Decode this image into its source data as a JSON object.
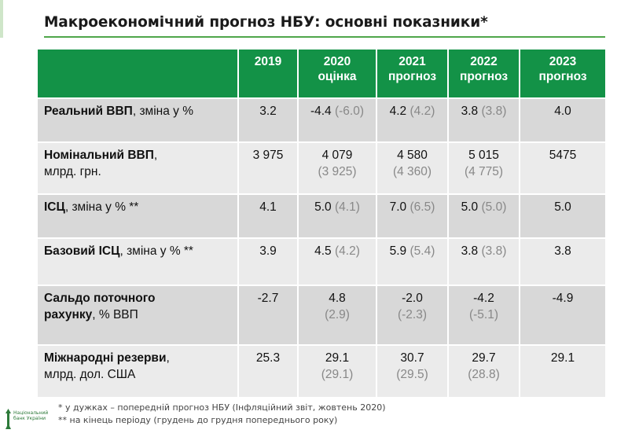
{
  "title": "Макроекономічний прогноз НБУ: основні показники*",
  "table": {
    "headers": [
      {
        "line1": "",
        "line2": ""
      },
      {
        "line1": "2019",
        "line2": ""
      },
      {
        "line1": "2020",
        "line2": "оцінка"
      },
      {
        "line1": "2021",
        "line2": "прогноз"
      },
      {
        "line1": "2022",
        "line2": "прогноз"
      },
      {
        "line1": "2023",
        "line2": "прогноз"
      }
    ],
    "rows": [
      {
        "label_bold": "Реальний ВВП",
        "label_rest": ", зміна у %",
        "label_line2": "",
        "cells": [
          {
            "value": "3.2",
            "prev": ""
          },
          {
            "value": "-4.4",
            "prev": "(-6.0)"
          },
          {
            "value": "4.2",
            "prev": "(4.2)"
          },
          {
            "value": "3.8",
            "prev": "(3.8)"
          },
          {
            "value": "4.0",
            "prev": ""
          }
        ]
      },
      {
        "label_bold": "Номінальний ВВП",
        "label_rest": ",",
        "label_line2": "млрд. грн.",
        "cells": [
          {
            "value": "3 975",
            "prev": ""
          },
          {
            "value": "4 079",
            "prev": "(3 925)"
          },
          {
            "value": "4 580",
            "prev": "(4 360)"
          },
          {
            "value": "5 015",
            "prev": "(4 775)"
          },
          {
            "value": "5475",
            "prev": ""
          }
        ]
      },
      {
        "label_bold": "ІСЦ",
        "label_rest": ", зміна у % **",
        "label_line2": "",
        "cells": [
          {
            "value": "4.1",
            "prev": ""
          },
          {
            "value": "5.0",
            "prev": "(4.1)"
          },
          {
            "value": "7.0",
            "prev": "(6.5)"
          },
          {
            "value": "5.0",
            "prev": "(5.0)"
          },
          {
            "value": "5.0",
            "prev": ""
          }
        ]
      },
      {
        "label_bold": "Базовий ІСЦ",
        "label_rest": ", зміна у % **",
        "label_line2": "",
        "cells": [
          {
            "value": "3.9",
            "prev": ""
          },
          {
            "value": "4.5",
            "prev": "(4.2)"
          },
          {
            "value": "5.9",
            "prev": "(5.4)"
          },
          {
            "value": "3.8",
            "prev": "(3.8)"
          },
          {
            "value": "3.8",
            "prev": ""
          }
        ]
      },
      {
        "label_bold": "Сальдо поточного",
        "label_rest": "",
        "label_line2_bold": "рахунку",
        "label_line2": ", % ВВП",
        "cells": [
          {
            "value": "-2.7",
            "prev": ""
          },
          {
            "value": "4.8",
            "prev": "(2.9)"
          },
          {
            "value": "-2.0",
            "prev": "(-2.3)"
          },
          {
            "value": "-4.2",
            "prev": "(-5.1)"
          },
          {
            "value": "-4.9",
            "prev": ""
          }
        ]
      },
      {
        "label_bold": "Міжнародні резерви",
        "label_rest": ",",
        "label_line2": "млрд. дол. США",
        "cells": [
          {
            "value": "25.3",
            "prev": ""
          },
          {
            "value": "29.1",
            "prev": "(29.1)"
          },
          {
            "value": "30.7",
            "prev": "(29.5)"
          },
          {
            "value": "29.7",
            "prev": "(28.8)"
          },
          {
            "value": "29.1",
            "prev": ""
          }
        ]
      }
    ]
  },
  "footnotes": [
    "* у дужках – попередній прогноз НБУ (Інфляційний звіт, жовтень 2020)",
    "** на кінець періоду (грудень до грудня попереднього року)"
  ],
  "logo": {
    "line1": "Національний",
    "line2": "банк України"
  },
  "colors": {
    "header_green": "#139247",
    "rule_green": "#4fa64a",
    "row_dark": "#d8d8d8",
    "row_light": "#ebebeb",
    "prev_gray": "#888888"
  }
}
